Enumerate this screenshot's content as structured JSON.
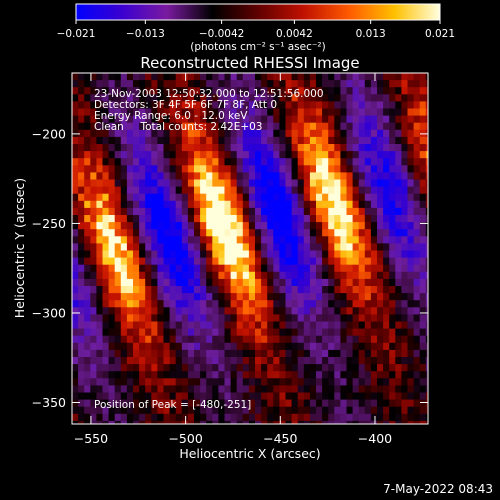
{
  "colorbar": {
    "min_label": "-0.021",
    "tick_labels": [
      "-0.021",
      "-0.013",
      "-0.0042",
      "0.0042",
      "0.013",
      "0.021"
    ],
    "tick_values": [
      -0.021,
      -0.013,
      -0.0042,
      0.0042,
      0.013,
      0.021
    ],
    "range": [
      -0.021,
      0.021
    ],
    "units_label": "(photons cm⁻² s⁻¹ asec⁻²)",
    "colors": [
      "#0000ff",
      "#3a00d0",
      "#7a1aa0",
      "#000000",
      "#600000",
      "#c01000",
      "#ff5a00",
      "#ffc000",
      "#ffffe0"
    ]
  },
  "chart_data": {
    "type": "heatmap",
    "title": "Reconstructed RHESSI Image",
    "xlabel": "Heliocentric X (arcsec)",
    "ylabel": "Heliocentric Y (arcsec)",
    "xlim": [
      -560,
      -372
    ],
    "ylim": [
      -362,
      -166
    ],
    "x_ticks": [
      -550,
      -500,
      -450,
      -400
    ],
    "x_tick_labels": [
      "−550",
      "−500",
      "−450",
      "−400"
    ],
    "y_ticks": [
      -200,
      -250,
      -300,
      -350
    ],
    "y_tick_labels": [
      "−200",
      "−250",
      "−300",
      "−350"
    ],
    "peak_position": [
      -480,
      -251
    ],
    "peak_value": 0.021,
    "annotations": [
      "23-Nov-2003 12:50:32.000 to 12:51:56.000",
      "Detectors: 3F 4F 5F 6F 7F 8F, Att 0",
      "Energy Range: 6.0 - 12.0 keV",
      "Clean     Total counts: 2.42E+03"
    ],
    "peak_label": "Position of Peak = [-480,-251]"
  },
  "footer": {
    "timestamp": "7-May-2022 08:43"
  }
}
